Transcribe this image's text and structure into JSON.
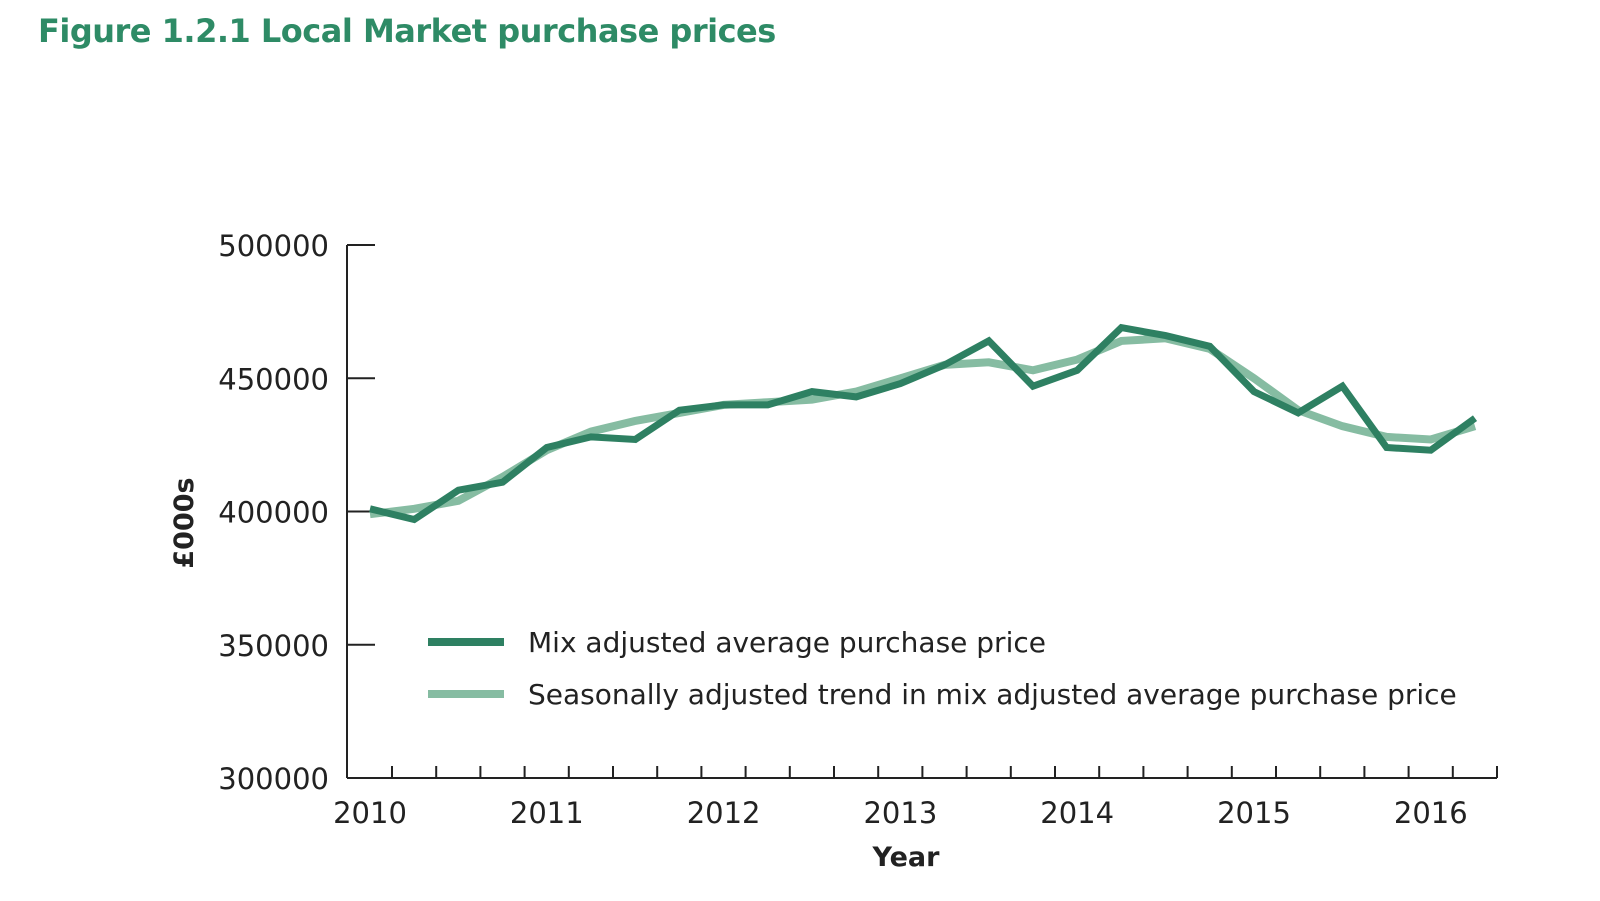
{
  "title": "Figure 1.2.1 Local Market purchase prices",
  "chart_data": {
    "type": "line",
    "title": "Figure 1.2.1 Local Market purchase prices",
    "xlabel": "Year",
    "ylabel": "£000s",
    "ylim": [
      300000,
      500000
    ],
    "yticks": [
      "500000",
      "450000",
      "400000",
      "350000",
      "300000"
    ],
    "ytick_values": [
      500000,
      450000,
      400000,
      350000,
      300000
    ],
    "xticks": [
      "2010",
      "2011",
      "2012",
      "2013",
      "2014",
      "2015",
      "2016"
    ],
    "grid": false,
    "legend_position": "bottom-center (inside plot)",
    "x": [
      "2010 Q1",
      "2010 Q2",
      "2010 Q3",
      "2010 Q4",
      "2011 Q1",
      "2011 Q2",
      "2011 Q3",
      "2011 Q4",
      "2012 Q1",
      "2012 Q2",
      "2012 Q3",
      "2012 Q4",
      "2013 Q1",
      "2013 Q2",
      "2013 Q3",
      "2013 Q4",
      "2014 Q1",
      "2014 Q2",
      "2014 Q3",
      "2014 Q4",
      "2015 Q1",
      "2015 Q2",
      "2015 Q3",
      "2015 Q4",
      "2016 Q1",
      "2016 Q2"
    ],
    "series": [
      {
        "name": "Mix adjusted average purchase price",
        "color": "#2e8062",
        "values": [
          401000,
          397000,
          408000,
          411000,
          424000,
          428000,
          427000,
          438000,
          440000,
          440000,
          445000,
          443000,
          448000,
          455000,
          464000,
          447000,
          453000,
          469000,
          466000,
          462000,
          445000,
          437000,
          447000,
          424000,
          423000,
          435000
        ]
      },
      {
        "name": "Seasonally adjusted trend in mix adjusted average purchase price",
        "color": "#86bca2",
        "values": [
          399000,
          401000,
          404000,
          413000,
          423000,
          430000,
          434000,
          437000,
          440000,
          441000,
          442000,
          445000,
          450000,
          455000,
          456000,
          453000,
          457000,
          464000,
          465000,
          461000,
          450000,
          438000,
          432000,
          428000,
          427000,
          432000
        ]
      }
    ]
  }
}
